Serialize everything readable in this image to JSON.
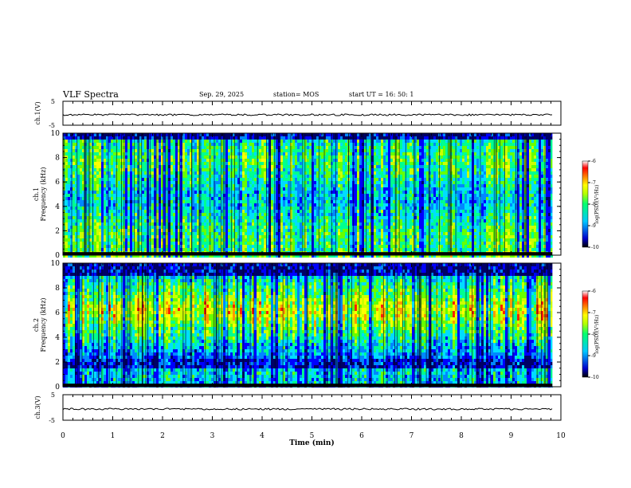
{
  "header": {
    "title": "VLF Spectra",
    "date": "Sep. 29, 2025",
    "station": "station= MOS",
    "start_ut": "start  UT =   16: 50: 1"
  },
  "chart_data": [
    {
      "type": "line",
      "name": "ch1-waveform",
      "ylabel": "ch.1(V)",
      "ylim": [
        -5,
        5
      ],
      "ytick_labels": [
        "5",
        "-5"
      ],
      "baseline_value": 0
    },
    {
      "type": "heatmap",
      "name": "ch1-spectrogram",
      "ylabel_channel": "ch.1",
      "ylabel": "Frequency (kHz)",
      "ylim": [
        0,
        10
      ],
      "yticks": [
        "0",
        "2",
        "4",
        "6",
        "8",
        "10"
      ],
      "xlim": [
        0,
        10
      ],
      "data_end_min": 9.83,
      "dominant_band_khz": [
        0.4,
        9.8
      ],
      "colorbar": {
        "label": "log(PSD)(V²/Hz)",
        "range": [
          -10,
          -6
        ],
        "ticks": [
          "-6",
          "-7",
          "-8",
          "-9",
          "-10"
        ]
      }
    },
    {
      "type": "heatmap",
      "name": "ch2-spectrogram",
      "ylabel_channel": "ch.2",
      "ylabel": "Frequency (kHz)",
      "ylim": [
        0,
        10
      ],
      "yticks": [
        "0",
        "2",
        "4",
        "6",
        "8",
        "10"
      ],
      "xlim": [
        0,
        10
      ],
      "data_end_min": 9.83,
      "dominant_band_khz": [
        4.5,
        8.0
      ],
      "colorbar": {
        "label": "log(PSD)(V²/Hz)",
        "range": [
          -10,
          -6
        ],
        "ticks": [
          "-6",
          "-7",
          "-8",
          "-9",
          "-10"
        ]
      }
    },
    {
      "type": "line",
      "name": "ch3-waveform",
      "ylabel": "ch.3(V)",
      "ylim": [
        -5,
        5
      ],
      "ytick_labels": [
        "5",
        "-5"
      ],
      "baseline_value": 0
    }
  ],
  "xaxis": {
    "label": "Time (min)",
    "range": [
      0,
      10
    ],
    "ticks": [
      "0",
      "1",
      "2",
      "3",
      "4",
      "5",
      "6",
      "7",
      "8",
      "9",
      "10"
    ]
  },
  "colors": {
    "axis": "#000000",
    "cmap": [
      "#000088",
      "#0000ff",
      "#00c8ff",
      "#00ff70",
      "#b4ff00",
      "#ffff00",
      "#ff8000",
      "#ff0000",
      "#ffffff"
    ]
  }
}
